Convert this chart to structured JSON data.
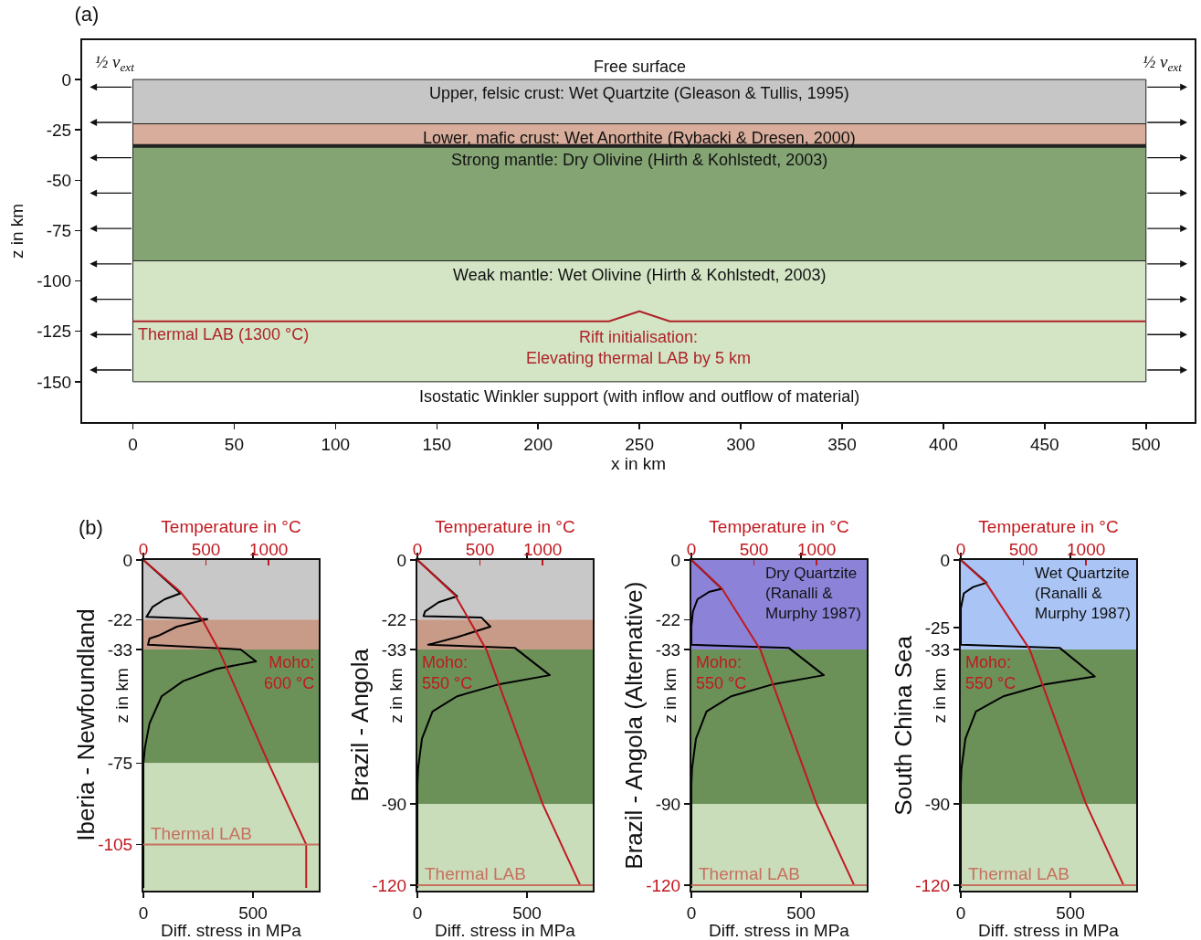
{
  "chart_data": [
    {
      "type": "line",
      "title": "(a)",
      "xlabel": "x in km",
      "ylabel": "z in km",
      "xlim": [
        -25,
        524
      ],
      "xticks": [
        0,
        50,
        100,
        150,
        200,
        250,
        300,
        350,
        400,
        450,
        500
      ],
      "ylim": [
        -170,
        19.5
      ],
      "yticks": [
        0,
        -25,
        -50,
        -75,
        -100,
        -125,
        -150
      ],
      "series": [
        {
          "color": "#b0232a",
          "x": [
            0,
            235,
            250,
            265,
            500
          ],
          "values": [
            -120,
            -120,
            -115,
            -120,
            -120
          ]
        }
      ],
      "bands": [
        {
          "axis": "y",
          "from": 0,
          "to": -22,
          "label": "Upper, felsic crust: Wet Quartzite (Gleason & Tullis, 1995)",
          "color": "#c6c6c6"
        },
        {
          "axis": "y",
          "from": -22,
          "to": -33,
          "label": "Lower, mafic crust: Wet Anorthite (Rybacki & Dresen, 2000)",
          "color": "#d8ad9b"
        },
        {
          "axis": "y",
          "from": -33,
          "to": -90,
          "label": "Strong mantle: Dry Olivine (Hirth & Kohlstedt, 2003)",
          "color": "#84a474"
        },
        {
          "axis": "y",
          "from": -90,
          "to": -150,
          "label": "Weak mantle: Wet Olivine (Hirth & Kohlstedt, 2003)",
          "color": "#d3e5c5"
        }
      ],
      "ref_lines": [
        {
          "axis": "y",
          "value": -33,
          "color": "#222222"
        }
      ],
      "annotations": [
        {
          "text": "Free surface",
          "x": 250,
          "y": 0
        },
        "½ v$_{ext}$",
        "½ v$_{ext}$",
        {
          "text": "Thermal LAB (1300 °C)",
          "x": 0,
          "y": -120
        },
        "Rift initialisation:\nElevating thermal LAB by 5 km",
        {
          "text": "Isostatic Winkler support (with inflow and outflow of material)",
          "x": 250,
          "y": -150
        }
      ]
    },
    {
      "type": "line",
      "title": "Iberia - Newfoundland",
      "xlabel": "Diff. stress in MPa",
      "x2label": "Temperature in °C",
      "ylabel": "z in km",
      "xlim": [
        0,
        800
      ],
      "xticks": [
        0,
        500
      ],
      "x2lim": [
        0,
        1400
      ],
      "x2ticks": [
        0,
        500,
        1000
      ],
      "ylim": [
        -122,
        0
      ],
      "yticks": [
        0,
        -22,
        -33,
        -75,
        -105
      ],
      "series": [
        {
          "color": "#000000",
          "x": [
            0,
            169,
            97,
            42,
            21,
            14,
            292,
            153,
            69,
            28,
            21,
            444,
            514,
            333,
            181,
            83,
            28,
            7,
            0,
            0
          ],
          "values": [
            0,
            -12.3,
            -14.5,
            -17.3,
            -20.1,
            -21,
            -21.8,
            -24.6,
            -27.9,
            -29,
            -31.3,
            -33,
            -37.4,
            -40.2,
            -44.7,
            -50.3,
            -60.3,
            -69.3,
            -75,
            -121
          ]
        },
        {
          "color": "#c0191f",
          "axis": "x2",
          "x": [
            0,
            300,
            470,
            600,
            1000,
            1300,
            1300
          ],
          "values": [
            0,
            -12,
            -22,
            -33,
            -75,
            -105,
            -121
          ]
        }
      ],
      "bands": [
        {
          "axis": "y",
          "from": 0,
          "to": -22,
          "color": "#c8c8c8"
        },
        {
          "axis": "y",
          "from": -22,
          "to": -33,
          "color": "#c89a88"
        },
        {
          "axis": "y",
          "from": -33,
          "to": -75,
          "color": "#6b9158"
        },
        {
          "axis": "y",
          "from": -75,
          "to": -122,
          "color": "#c9ddbb"
        }
      ],
      "ref_lines": [
        {
          "axis": "y",
          "value": -105,
          "label": "Thermal LAB",
          "color": "#c8705f"
        }
      ],
      "annotations": [
        "(b)",
        {
          "text": "Moho:\n600 °C",
          "x": 800,
          "y": -33
        }
      ]
    },
    {
      "type": "line",
      "title": "Brazil - Angola",
      "xlabel": "Diff. stress in MPa",
      "x2label": "Temperature in °C",
      "ylabel": "z in km",
      "xlim": [
        0,
        800
      ],
      "xticks": [
        0,
        500
      ],
      "x2lim": [
        0,
        1400
      ],
      "x2ticks": [
        0,
        500,
        1000
      ],
      "ylim": [
        -122,
        0
      ],
      "yticks": [
        0,
        -22,
        -33,
        -90,
        -120
      ],
      "series": [
        {
          "color": "#000000",
          "x": [
            0,
            181,
            97,
            35,
            28,
            292,
            333,
            181,
            49,
            444,
            604,
            375,
            181,
            69,
            21,
            3,
            0,
            0
          ],
          "values": [
            0,
            -13.4,
            -15.6,
            -19,
            -20.7,
            -21.2,
            -24.6,
            -28.5,
            -31.3,
            -32.4,
            -42.5,
            -45.8,
            -50.3,
            -55.9,
            -65.9,
            -77,
            -83,
            -121
          ]
        },
        {
          "color": "#c0191f",
          "axis": "x2",
          "x": [
            0,
            300,
            550,
            1000,
            1300
          ],
          "values": [
            0,
            -13,
            -33,
            -90,
            -120
          ]
        }
      ],
      "bands": [
        {
          "axis": "y",
          "from": 0,
          "to": -22,
          "color": "#c8c8c8"
        },
        {
          "axis": "y",
          "from": -22,
          "to": -33,
          "color": "#c89a88"
        },
        {
          "axis": "y",
          "from": -33,
          "to": -90,
          "color": "#6b9158"
        },
        {
          "axis": "y",
          "from": -90,
          "to": -122,
          "color": "#c9ddbb"
        }
      ],
      "ref_lines": [
        {
          "axis": "y",
          "value": -120,
          "label": "Thermal LAB",
          "color": "#c8705f"
        }
      ],
      "annotations": [
        {
          "text": "Moho:\n550 °C",
          "x": 0,
          "y": -33
        }
      ]
    },
    {
      "type": "line",
      "title": "Brazil - Angola (Alternative)",
      "xlabel": "Diff. stress in MPa",
      "x2label": "Temperature in °C",
      "ylabel": "z in km",
      "xlim": [
        0,
        800
      ],
      "xticks": [
        0,
        500
      ],
      "x2lim": [
        0,
        1400
      ],
      "x2ticks": [
        0,
        500,
        1000
      ],
      "ylim": [
        -122,
        0
      ],
      "yticks": [
        0,
        -22,
        -33,
        -90,
        -120
      ],
      "series": [
        {
          "color": "#000000",
          "x": [
            0,
            139,
            83,
            28,
            7,
            0,
            0,
            444,
            604,
            375,
            181,
            69,
            21,
            3,
            0,
            0
          ],
          "values": [
            0,
            -10.6,
            -11.7,
            -14.5,
            -19,
            -24.6,
            -31.3,
            -32.4,
            -42.5,
            -45.8,
            -50.3,
            -55.9,
            -65.9,
            -77,
            -83,
            -121
          ]
        },
        {
          "color": "#c0191f",
          "axis": "x2",
          "x": [
            0,
            245,
            550,
            1000,
            1300
          ],
          "values": [
            0,
            -10.6,
            -33,
            -90,
            -120
          ]
        }
      ],
      "bands": [
        {
          "axis": "y",
          "from": 0,
          "to": -33,
          "label": "Dry Quartzite\n(Ranalli &\nMurphy 1987)",
          "color": "#8c83d9"
        },
        {
          "axis": "y",
          "from": -33,
          "to": -90,
          "color": "#6b9158"
        },
        {
          "axis": "y",
          "from": -90,
          "to": -122,
          "color": "#c9ddbb"
        }
      ],
      "ref_lines": [
        {
          "axis": "y",
          "value": -120,
          "label": "Thermal LAB",
          "color": "#c8705f"
        }
      ],
      "annotations": [
        {
          "text": "Moho:\n550 °C",
          "x": 0,
          "y": -33
        }
      ]
    },
    {
      "type": "line",
      "title": "South China Sea",
      "xlabel": "Diff. stress in MPa",
      "x2label": "Temperature in °C",
      "ylabel": "z in km",
      "xlim": [
        0,
        800
      ],
      "xticks": [
        0,
        500
      ],
      "x2lim": [
        0,
        1400
      ],
      "x2ticks": [
        0,
        500,
        1000
      ],
      "ylim": [
        -122,
        0
      ],
      "yticks": [
        0,
        -25,
        -33,
        -90,
        -120
      ],
      "series": [
        {
          "color": "#000000",
          "x": [
            0,
            118,
            56,
            14,
            0,
            0,
            451,
            611,
            389,
            194,
            69,
            21,
            3,
            0,
            0
          ],
          "values": [
            0,
            -8.4,
            -10,
            -12.3,
            -17.9,
            -31.3,
            -32.4,
            -43,
            -45.8,
            -50.3,
            -55.9,
            -65.9,
            -77,
            -83,
            -121
          ]
        },
        {
          "color": "#c0191f",
          "axis": "x2",
          "x": [
            0,
            200,
            550,
            1000,
            1300
          ],
          "values": [
            0,
            -8.4,
            -33,
            -90,
            -120
          ]
        }
      ],
      "bands": [
        {
          "axis": "y",
          "from": 0,
          "to": -33,
          "label": "Wet Quartzite\n(Ranalli &\nMurphy 1987)",
          "color": "#a9c4f5"
        },
        {
          "axis": "y",
          "from": -33,
          "to": -90,
          "color": "#6b9158"
        },
        {
          "axis": "y",
          "from": -90,
          "to": -122,
          "color": "#c9ddbb"
        }
      ],
      "ref_lines": [
        {
          "axis": "y",
          "value": -120,
          "label": "Thermal LAB",
          "color": "#c8705f"
        }
      ],
      "annotations": [
        {
          "text": "Moho:\n550 °C",
          "x": 0,
          "y": -33
        }
      ]
    }
  ]
}
